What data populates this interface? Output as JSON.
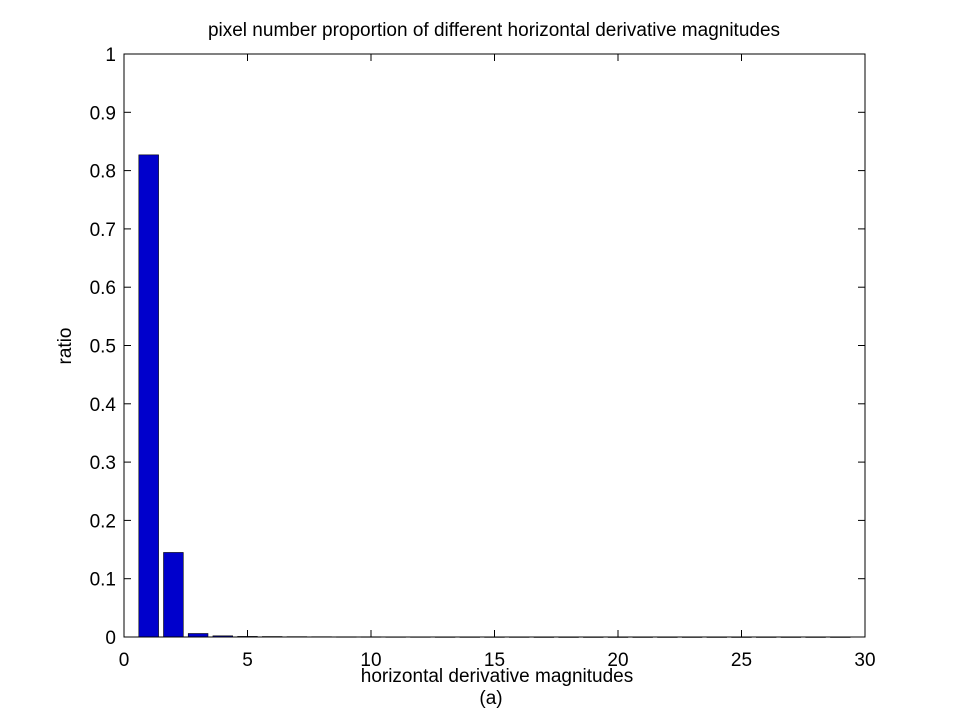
{
  "chart_data": {
    "type": "bar",
    "title": "pixel number proportion of different horizontal derivative magnitudes",
    "xlabel": "horizontal derivative magnitudes",
    "ylabel": "ratio",
    "caption": "(a)",
    "xlim": [
      0,
      30
    ],
    "ylim": [
      0,
      1
    ],
    "xticks": [
      0,
      5,
      10,
      15,
      20,
      25,
      30
    ],
    "yticks": [
      0,
      0.1,
      0.2,
      0.3,
      0.4,
      0.5,
      0.6,
      0.7,
      0.8,
      0.9,
      1
    ],
    "x": [
      1,
      2,
      3,
      4,
      5,
      6,
      7,
      8,
      9,
      10,
      11,
      12,
      13,
      14,
      15,
      16,
      17,
      18,
      19,
      20,
      21,
      22,
      23,
      24,
      25,
      26,
      27,
      28,
      29
    ],
    "values": [
      0.827,
      0.145,
      0.006,
      0.002,
      0.001,
      0.0008,
      0.0006,
      0.0005,
      0.0004,
      0.0004,
      0.0003,
      0.0003,
      0.0002,
      0.0002,
      0.0002,
      0.0002,
      0.0001,
      0.0001,
      0.0001,
      0.0001,
      0.0001,
      0.0001,
      0.0001,
      0.0001,
      0.0001,
      0.0001,
      0.0001,
      0.0001,
      0.0001
    ],
    "bar_color": "#0000cc",
    "grid": false
  }
}
